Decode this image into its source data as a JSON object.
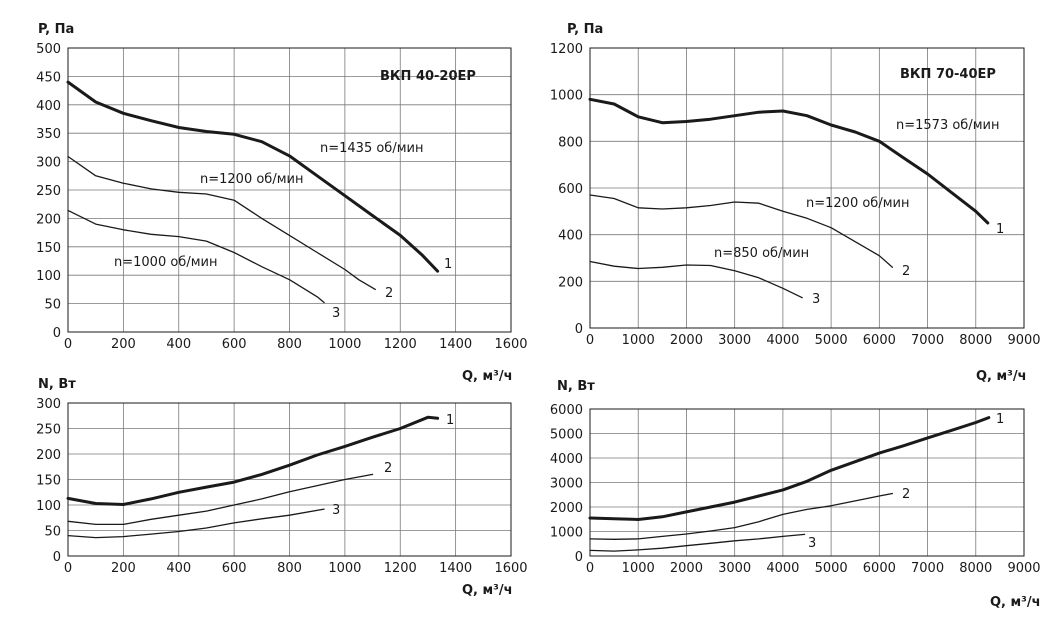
{
  "chart_data": [
    {
      "type": "line",
      "title": "ВКП 40-20ЕР",
      "ylabel": "P, Па",
      "xlabel": "Q, м³/ч",
      "xlim": [
        0,
        1600
      ],
      "ylim": [
        0,
        500
      ],
      "xticks": [
        "0",
        "200",
        "400",
        "600",
        "800",
        "1000",
        "1200",
        "1400",
        "1600"
      ],
      "yticks": [
        "0",
        "50",
        "100",
        "150",
        "200",
        "250",
        "300",
        "350",
        "400",
        "450",
        "500"
      ],
      "grid": true,
      "series": [
        {
          "name": "n=1435 об/мин",
          "marker": "1",
          "stroke_width": 3,
          "x": [
            0,
            100,
            200,
            300,
            400,
            500,
            600,
            700,
            800,
            900,
            1000,
            1100,
            1200,
            1280,
            1335
          ],
          "y": [
            440,
            405,
            385,
            372,
            360,
            353,
            348,
            335,
            310,
            275,
            240,
            205,
            170,
            135,
            107
          ]
        },
        {
          "name": "n=1200 об/мин",
          "marker": "2",
          "stroke_width": 1.3,
          "x": [
            0,
            100,
            200,
            300,
            400,
            500,
            600,
            700,
            800,
            900,
            1000,
            1050,
            1110
          ],
          "y": [
            309,
            275,
            262,
            252,
            246,
            243,
            232,
            200,
            170,
            140,
            110,
            92,
            75
          ]
        },
        {
          "name": "n=1000 об/мин",
          "marker": "3",
          "stroke_width": 1.3,
          "x": [
            0,
            100,
            200,
            300,
            400,
            500,
            600,
            700,
            800,
            900,
            925
          ],
          "y": [
            214,
            190,
            180,
            172,
            168,
            160,
            140,
            115,
            92,
            62,
            52
          ]
        }
      ]
    },
    {
      "type": "line",
      "title": "ВКП 70-40ЕР",
      "ylabel": "P, Па",
      "xlabel": "Q, м³/ч",
      "xlim": [
        0,
        9000
      ],
      "ylim": [
        0,
        1200
      ],
      "xticks": [
        "0",
        "1000",
        "2000",
        "3000",
        "4000",
        "5000",
        "6000",
        "7000",
        "8000",
        "9000"
      ],
      "yticks": [
        "0",
        "200",
        "400",
        "600",
        "800",
        "1000",
        "1200"
      ],
      "grid": true,
      "series": [
        {
          "name": "n=1573 об/мин",
          "marker": "1",
          "stroke_width": 3,
          "x": [
            0,
            500,
            1000,
            1500,
            2000,
            2500,
            3000,
            3500,
            4000,
            4500,
            5000,
            5500,
            6000,
            6500,
            7000,
            7500,
            8000,
            8250
          ],
          "y": [
            980,
            960,
            905,
            880,
            885,
            895,
            910,
            925,
            930,
            910,
            870,
            840,
            800,
            730,
            660,
            580,
            500,
            450
          ]
        },
        {
          "name": "n=1200 об/мин",
          "marker": "2",
          "stroke_width": 1.3,
          "x": [
            0,
            500,
            1000,
            1500,
            2000,
            2500,
            3000,
            3500,
            4000,
            4500,
            5000,
            5500,
            6000,
            6270
          ],
          "y": [
            570,
            555,
            515,
            510,
            515,
            525,
            540,
            535,
            500,
            470,
            430,
            370,
            310,
            260
          ]
        },
        {
          "name": "n=850 об/мин",
          "marker": "3",
          "stroke_width": 1.3,
          "x": [
            0,
            500,
            1000,
            1500,
            2000,
            2500,
            3000,
            3500,
            4000,
            4400
          ],
          "y": [
            285,
            265,
            255,
            260,
            270,
            268,
            245,
            215,
            170,
            130
          ]
        }
      ]
    },
    {
      "type": "line",
      "ylabel": "N, Вт",
      "xlabel": "Q, м³/ч",
      "xlim": [
        0,
        1600
      ],
      "ylim": [
        0,
        300
      ],
      "xticks": [
        "0",
        "200",
        "400",
        "600",
        "800",
        "1000",
        "1200",
        "1400",
        "1600"
      ],
      "yticks": [
        "0",
        "50",
        "100",
        "150",
        "200",
        "250",
        "300"
      ],
      "grid": true,
      "series": [
        {
          "marker": "1",
          "stroke_width": 3,
          "x": [
            0,
            100,
            200,
            300,
            400,
            500,
            600,
            700,
            800,
            900,
            1000,
            1100,
            1200,
            1300,
            1335
          ],
          "y": [
            113,
            103,
            101,
            112,
            125,
            135,
            145,
            160,
            178,
            198,
            215,
            233,
            250,
            272,
            270
          ]
        },
        {
          "marker": "2",
          "stroke_width": 1.3,
          "x": [
            0,
            100,
            200,
            300,
            400,
            500,
            600,
            700,
            800,
            900,
            1000,
            1100
          ],
          "y": [
            68,
            62,
            62,
            72,
            80,
            88,
            100,
            112,
            126,
            138,
            150,
            160
          ]
        },
        {
          "marker": "3",
          "stroke_width": 1.3,
          "x": [
            0,
            100,
            200,
            300,
            400,
            500,
            600,
            700,
            800,
            925
          ],
          "y": [
            40,
            36,
            38,
            43,
            48,
            55,
            65,
            73,
            80,
            92
          ]
        }
      ]
    },
    {
      "type": "line",
      "ylabel": "N, Вт",
      "xlabel": "Q, м³/ч",
      "xlim": [
        0,
        9000
      ],
      "ylim": [
        0,
        6000
      ],
      "xticks": [
        "0",
        "1000",
        "2000",
        "3000",
        "4000",
        "5000",
        "6000",
        "7000",
        "8000",
        "9000"
      ],
      "yticks": [
        "0",
        "1000",
        "2000",
        "3000",
        "4000",
        "5000",
        "6000"
      ],
      "grid": true,
      "series": [
        {
          "marker": "1",
          "stroke_width": 3,
          "x": [
            0,
            500,
            1000,
            1500,
            2000,
            2500,
            3000,
            3500,
            4000,
            4500,
            5000,
            5500,
            6000,
            6500,
            7000,
            7500,
            8000,
            8270
          ],
          "y": [
            1550,
            1520,
            1490,
            1600,
            1800,
            2000,
            2200,
            2450,
            2700,
            3050,
            3500,
            3850,
            4200,
            4500,
            4820,
            5130,
            5450,
            5650
          ]
        },
        {
          "marker": "2",
          "stroke_width": 1.3,
          "x": [
            0,
            500,
            1000,
            1500,
            2000,
            2500,
            3000,
            3500,
            4000,
            4500,
            5000,
            5500,
            6000,
            6270
          ],
          "y": [
            700,
            680,
            700,
            800,
            900,
            1020,
            1160,
            1400,
            1700,
            1900,
            2050,
            2250,
            2450,
            2550
          ]
        },
        {
          "marker": "3",
          "stroke_width": 1.3,
          "x": [
            0,
            500,
            1000,
            1500,
            2000,
            2500,
            3000,
            3500,
            4000,
            4450
          ],
          "y": [
            230,
            200,
            250,
            320,
            420,
            520,
            620,
            700,
            800,
            880
          ]
        }
      ]
    }
  ]
}
